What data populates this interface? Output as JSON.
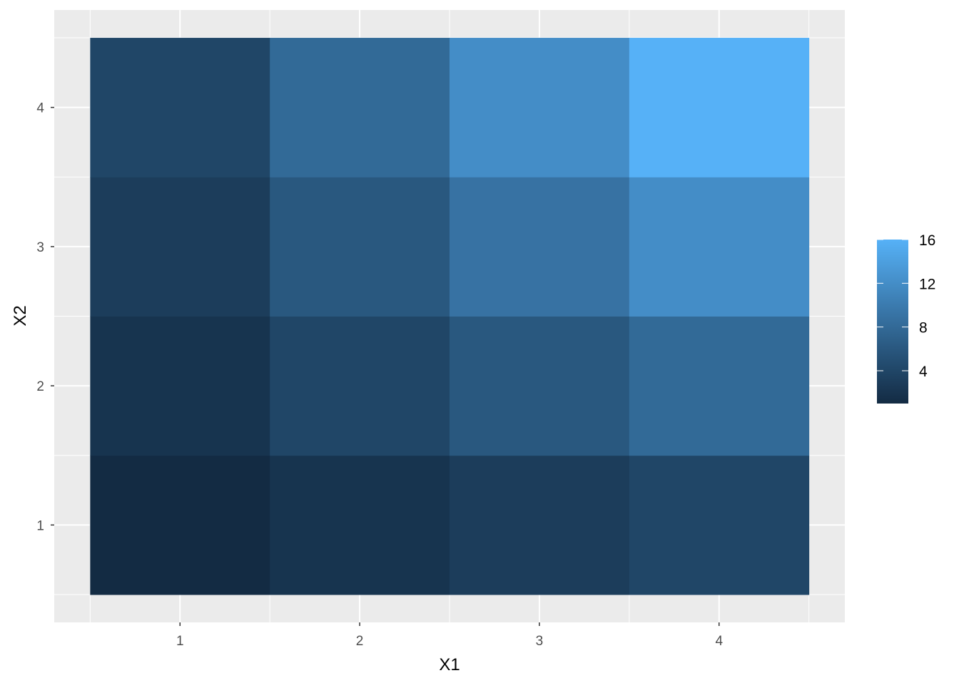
{
  "chart_data": {
    "type": "heatmap",
    "title": "",
    "xlabel": "X1",
    "ylabel": "X2",
    "x": [
      1,
      2,
      3,
      4
    ],
    "y": [
      1,
      2,
      3,
      4
    ],
    "x_tick_labels": [
      "1",
      "2",
      "3",
      "4"
    ],
    "y_tick_labels": [
      "1",
      "2",
      "3",
      "4"
    ],
    "xlim": [
      0.3,
      4.7
    ],
    "ylim": [
      0.3,
      4.7
    ],
    "values": [
      [
        1,
        2,
        3,
        4
      ],
      [
        2,
        4,
        6,
        8
      ],
      [
        3,
        6,
        9,
        12
      ],
      [
        4,
        8,
        12,
        16
      ]
    ],
    "values_note_rows": "rows indexed by X2 (1..4), columns by X1 (1..4)",
    "grid": true,
    "colorbar": {
      "low_color": "#132B43",
      "high_color": "#56B1F7",
      "range": [
        1,
        16
      ],
      "ticks": [
        4,
        8,
        12,
        16
      ],
      "tick_labels": [
        "4",
        "8",
        "12",
        "16"
      ],
      "placement": "right"
    },
    "panel_background": "#EBEBEB"
  }
}
